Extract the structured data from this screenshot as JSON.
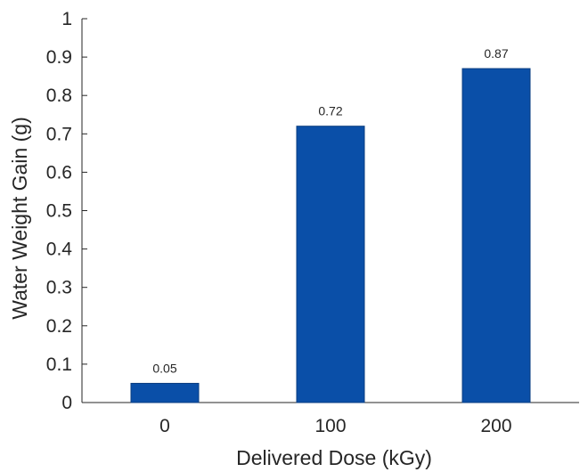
{
  "chart_data": {
    "type": "bar",
    "categories": [
      "0",
      "100",
      "200"
    ],
    "values": [
      0.05,
      0.72,
      0.87
    ],
    "data_labels": [
      "0.05",
      "0.72",
      "0.87"
    ],
    "xlabel": "Delivered Dose (kGy)",
    "ylabel": "Water Weight Gain (g)",
    "ylim": [
      0,
      1
    ],
    "yticks": [
      "0",
      "0.1",
      "0.2",
      "0.3",
      "0.4",
      "0.5",
      "0.6",
      "0.7",
      "0.8",
      "0.9",
      "1"
    ],
    "grid": false,
    "legend": "none",
    "colors": {
      "bar": "#0a4fa8",
      "bar_edge": "#0a3d80",
      "axis": "#262626"
    }
  }
}
